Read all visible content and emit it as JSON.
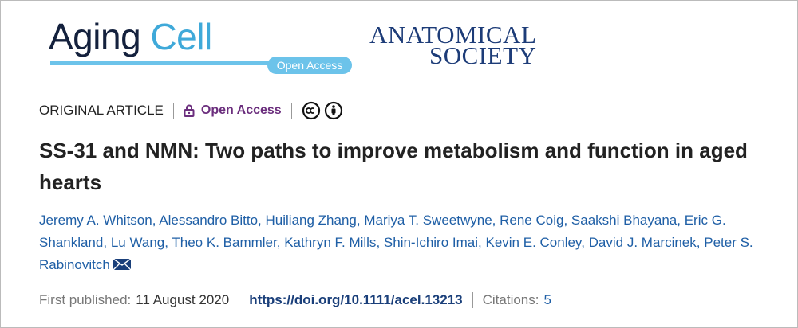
{
  "logos": {
    "journal_name_part1": "Aging",
    "journal_name_part2": "Cell",
    "badge": "Open Access",
    "society_line1": "ANATOMICAL",
    "society_line2": "SOCIETY"
  },
  "article_type": "ORIGINAL ARTICLE",
  "access": "Open Access",
  "title": "SS-31 and NMN: Two paths to improve metabolism and function in aged hearts",
  "authors": [
    "Jeremy A. Whitson",
    "Alessandro Bitto",
    "Huiliang Zhang",
    "Mariya T. Sweetwyne",
    "Rene Coig",
    "Saakshi Bhayana",
    "Eric G. Shankland",
    "Lu Wang",
    "Theo K. Bammler",
    "Kathryn F. Mills",
    "Shin-Ichiro Imai",
    "Kevin E. Conley",
    "David J. Marcinek",
    "Peter S. Rabinovitch"
  ],
  "author_separator": ",",
  "published": {
    "label": "First published:",
    "date": "11 August 2020"
  },
  "doi": "https://doi.org/10.1111/acel.13213",
  "citations": {
    "label": "Citations:",
    "count": "5"
  }
}
